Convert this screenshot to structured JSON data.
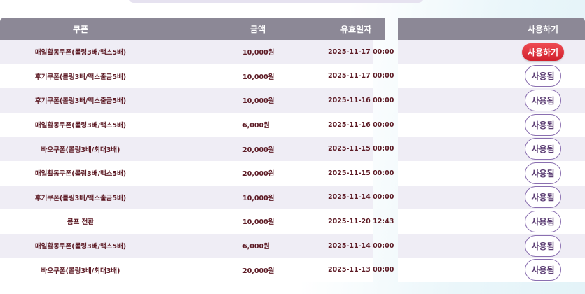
{
  "headers": {
    "coupon": "쿠폰",
    "amount": "금액",
    "expiry": "유효일자",
    "action": "사용하기"
  },
  "rows": [
    {
      "coupon": "매일활동쿠폰(롤링3배/맥스5배)",
      "amount": "10,000원",
      "expiry": "2025-11-17 00:00",
      "action": "사용하기",
      "state": "available"
    },
    {
      "coupon": "후기쿠폰(롤링3배/맥스출금5배)",
      "amount": "10,000원",
      "expiry": "2025-11-17 00:00",
      "action": "사용됨",
      "state": "used"
    },
    {
      "coupon": "후기쿠폰(롤링3배/맥스출금5배)",
      "amount": "10,000원",
      "expiry": "2025-11-16 00:00",
      "action": "사용됨",
      "state": "used"
    },
    {
      "coupon": "매일활동쿠폰(롤링3배/맥스5배)",
      "amount": "6,000원",
      "expiry": "2025-11-16 00:00",
      "action": "사용됨",
      "state": "used"
    },
    {
      "coupon": "바오쿠폰(롤링3배/최대3배)",
      "amount": "20,000원",
      "expiry": "2025-11-15 00:00",
      "action": "사용됨",
      "state": "used"
    },
    {
      "coupon": "매일활동쿠폰(롤링3배/맥스5배)",
      "amount": "20,000원",
      "expiry": "2025-11-15 00:00",
      "action": "사용됨",
      "state": "used"
    },
    {
      "coupon": "후기쿠폰(롤링3배/맥스출금5배)",
      "amount": "10,000원",
      "expiry": "2025-11-14 00:00",
      "action": "사용됨",
      "state": "used"
    },
    {
      "coupon": "콤프 전환",
      "amount": "10,000원",
      "expiry": "2025-11-20 12:43",
      "action": "사용됨",
      "state": "used"
    },
    {
      "coupon": "매일활동쿠폰(롤링3배/맥스5배)",
      "amount": "6,000원",
      "expiry": "2025-11-14 00:00",
      "action": "사용됨",
      "state": "used"
    },
    {
      "coupon": "바오쿠폰(롤링3배/최대3배)",
      "amount": "20,000원",
      "expiry": "2025-11-13 00:00",
      "action": "사용됨",
      "state": "used"
    }
  ],
  "colors": {
    "header_bg": "#8c8896",
    "use_button": "#e0323b",
    "used_border": "#8a6fb0",
    "text": "#5c1a24"
  }
}
